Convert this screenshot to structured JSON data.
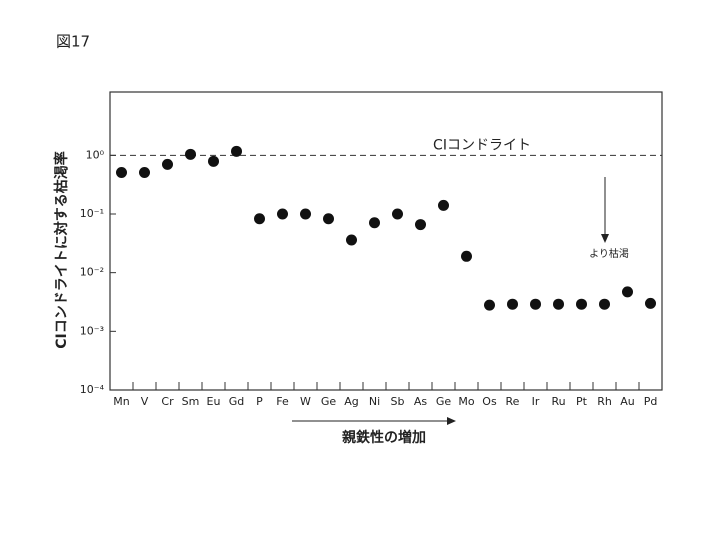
{
  "chart_data": {
    "type": "scatter",
    "title": "図17",
    "y_label": "CIコンドライトに対する枯渇率",
    "x_label": "親鉄性の増加",
    "annotation": "より枯渇",
    "reference_line": {
      "value": 1,
      "label": "CIコンドライト"
    },
    "log_y": true,
    "color": "#111111",
    "categories": [
      "Mn",
      "V",
      "Cr",
      "Sm",
      "Eu",
      "Gd",
      "P",
      "Fe",
      "W",
      "Ge",
      "Ag",
      "Ni",
      "Sb",
      "As",
      "Ge",
      "Mo",
      "Os",
      "Re",
      "Ir",
      "Ru",
      "Pt",
      "Rh",
      "Au",
      "Pd"
    ],
    "values": [
      0.51,
      0.51,
      0.7,
      1.04,
      0.79,
      1.17,
      0.083,
      0.1,
      0.1,
      0.083,
      0.036,
      0.071,
      0.1,
      0.066,
      0.14,
      0.019,
      0.0028,
      0.0029,
      0.0029,
      0.0029,
      0.0029,
      0.0029,
      0.0047,
      0.003
    ],
    "ylim": [
      0.0001,
      12
    ],
    "yticks": [
      {
        "value": 1,
        "label": "10⁰"
      },
      {
        "value": 0.1,
        "label": "10⁻¹"
      },
      {
        "value": 0.01,
        "label": "10⁻²"
      },
      {
        "value": 0.001,
        "label": "10⁻³"
      },
      {
        "value": 0.0001,
        "label": "10⁻⁴"
      }
    ]
  }
}
